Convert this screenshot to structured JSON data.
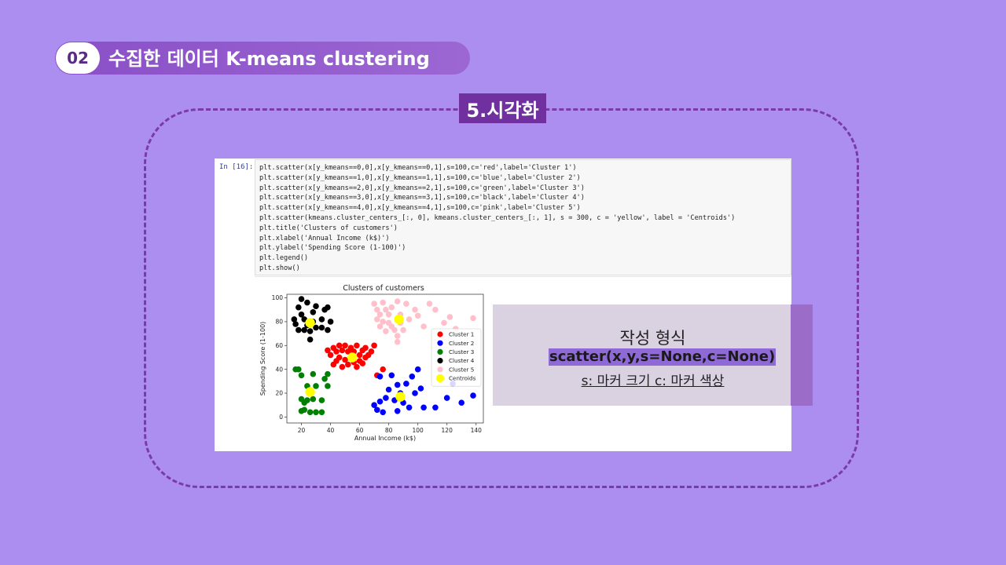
{
  "header": {
    "number": "02",
    "title": "수집한 데이터 K-means clustering"
  },
  "section": {
    "label": "5.시각화"
  },
  "notebook": {
    "prompt": "In [16]:",
    "code_lines": [
      "plt.scatter(x[y_kmeans==0,0],x[y_kmeans==0,1],s=100,c='red',label='Cluster 1')",
      "plt.scatter(x[y_kmeans==1,0],x[y_kmeans==1,1],s=100,c='blue',label='Cluster 2')",
      "plt.scatter(x[y_kmeans==2,0],x[y_kmeans==2,1],s=100,c='green',label='Cluster 3')",
      "plt.scatter(x[y_kmeans==3,0],x[y_kmeans==3,1],s=100,c='black',label='Cluster 4')",
      "plt.scatter(x[y_kmeans==4,0],x[y_kmeans==4,1],s=100,c='pink',label='Cluster 5')",
      "plt.scatter(kmeans.cluster_centers_[:, 0], kmeans.cluster_centers_[:, 1], s = 300, c = 'yellow', label = 'Centroids')",
      "plt.title('Clusters of customers')",
      "plt.xlabel('Annual Income (k$)')",
      "plt.ylabel('Spending Score (1-100)')",
      "plt.legend()",
      "plt.show()"
    ]
  },
  "chart_data": {
    "type": "scatter",
    "title": "Clusters of customers",
    "xlabel": "Annual Income (k$)",
    "ylabel": "Spending Score (1-100)",
    "xlim": [
      10,
      145
    ],
    "ylim": [
      -5,
      103
    ],
    "xticks": [
      20,
      40,
      60,
      80,
      100,
      120,
      140
    ],
    "yticks": [
      0,
      20,
      40,
      60,
      80,
      100
    ],
    "legend_position": "center-right",
    "series": [
      {
        "name": "Cluster 1",
        "color": "#ff0000",
        "points": [
          [
            40,
            52
          ],
          [
            42,
            58
          ],
          [
            44,
            47
          ],
          [
            44,
            55
          ],
          [
            46,
            60
          ],
          [
            46,
            50
          ],
          [
            48,
            42
          ],
          [
            48,
            56
          ],
          [
            50,
            60
          ],
          [
            50,
            48
          ],
          [
            52,
            55
          ],
          [
            52,
            44
          ],
          [
            54,
            58
          ],
          [
            54,
            50
          ],
          [
            56,
            46
          ],
          [
            56,
            55
          ],
          [
            58,
            60
          ],
          [
            58,
            42
          ],
          [
            60,
            52
          ],
          [
            60,
            47
          ],
          [
            62,
            56
          ],
          [
            62,
            45
          ],
          [
            64,
            58
          ],
          [
            64,
            50
          ],
          [
            66,
            52
          ],
          [
            68,
            55
          ],
          [
            70,
            60
          ],
          [
            42,
            44
          ],
          [
            38,
            56
          ],
          [
            72,
            35
          ],
          [
            76,
            40
          ]
        ]
      },
      {
        "name": "Cluster 2",
        "color": "#0000ff",
        "points": [
          [
            70,
            10
          ],
          [
            72,
            6
          ],
          [
            74,
            13
          ],
          [
            76,
            4
          ],
          [
            78,
            16
          ],
          [
            80,
            23
          ],
          [
            82,
            35
          ],
          [
            84,
            14
          ],
          [
            86,
            27
          ],
          [
            88,
            20
          ],
          [
            90,
            12
          ],
          [
            92,
            28
          ],
          [
            96,
            34
          ],
          [
            98,
            20
          ],
          [
            102,
            24
          ],
          [
            104,
            8
          ],
          [
            112,
            8
          ],
          [
            120,
            16
          ],
          [
            124,
            28
          ],
          [
            130,
            12
          ],
          [
            138,
            18
          ],
          [
            74,
            34
          ],
          [
            86,
            5
          ],
          [
            100,
            40
          ],
          [
            94,
            8
          ]
        ]
      },
      {
        "name": "Cluster 3",
        "color": "#008000",
        "points": [
          [
            16,
            40
          ],
          [
            18,
            40
          ],
          [
            20,
            35
          ],
          [
            20,
            15
          ],
          [
            22,
            6
          ],
          [
            24,
            26
          ],
          [
            24,
            14
          ],
          [
            26,
            4
          ],
          [
            28,
            36
          ],
          [
            28,
            15
          ],
          [
            30,
            26
          ],
          [
            30,
            4
          ],
          [
            34,
            14
          ],
          [
            34,
            4
          ],
          [
            36,
            32
          ],
          [
            38,
            36
          ],
          [
            20,
            5
          ],
          [
            22,
            12
          ],
          [
            38,
            26
          ]
        ]
      },
      {
        "name": "Cluster 4",
        "color": "#000000",
        "points": [
          [
            15,
            82
          ],
          [
            16,
            78
          ],
          [
            18,
            92
          ],
          [
            20,
            99
          ],
          [
            20,
            86
          ],
          [
            22,
            73
          ],
          [
            24,
            77
          ],
          [
            24,
            96
          ],
          [
            26,
            65
          ],
          [
            28,
            88
          ],
          [
            28,
            80
          ],
          [
            30,
            75
          ],
          [
            30,
            93
          ],
          [
            34,
            82
          ],
          [
            34,
            75
          ],
          [
            36,
            90
          ],
          [
            38,
            73
          ],
          [
            38,
            92
          ],
          [
            40,
            80
          ],
          [
            18,
            73
          ],
          [
            22,
            82
          ],
          [
            26,
            72
          ]
        ]
      },
      {
        "name": "Cluster 5",
        "color": "#ffc0cb",
        "points": [
          [
            70,
            95
          ],
          [
            72,
            90
          ],
          [
            72,
            82
          ],
          [
            74,
            76
          ],
          [
            74,
            86
          ],
          [
            76,
            96
          ],
          [
            76,
            80
          ],
          [
            78,
            72
          ],
          [
            78,
            90
          ],
          [
            80,
            86
          ],
          [
            80,
            79
          ],
          [
            82,
            92
          ],
          [
            84,
            73
          ],
          [
            86,
            68
          ],
          [
            86,
            97
          ],
          [
            88,
            86
          ],
          [
            88,
            79
          ],
          [
            90,
            73
          ],
          [
            92,
            95
          ],
          [
            94,
            82
          ],
          [
            98,
            90
          ],
          [
            100,
            85
          ],
          [
            104,
            76
          ],
          [
            108,
            95
          ],
          [
            112,
            90
          ],
          [
            118,
            79
          ],
          [
            122,
            84
          ],
          [
            126,
            74
          ],
          [
            138,
            83
          ],
          [
            86,
            63
          ],
          [
            82,
            76
          ]
        ]
      },
      {
        "name": "Centroids",
        "color": "#ffff00",
        "points": [
          [
            26,
            79
          ],
          [
            55,
            50
          ],
          [
            87,
            82
          ],
          [
            26,
            21
          ],
          [
            88,
            17
          ]
        ]
      }
    ]
  },
  "info": {
    "title": "작성 형식",
    "formula": "scatter(x,y,s=None,c=None)",
    "description": "s: 마커 크기 c: 마커 색상"
  }
}
